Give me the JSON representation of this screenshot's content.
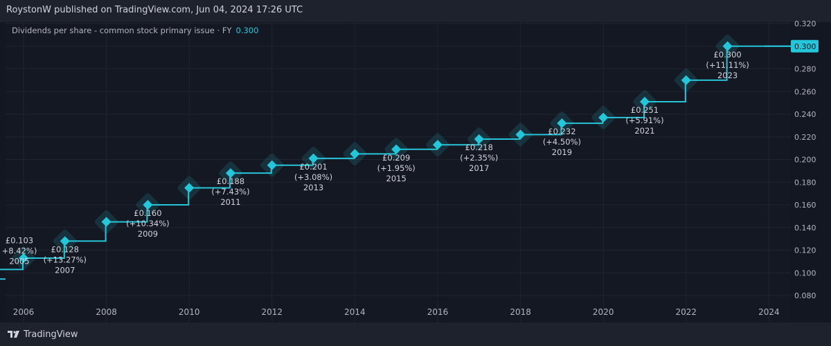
{
  "header": {
    "published_text": "RoystonW published on TradingView.com, Jun 04, 2024 17:26 UTC"
  },
  "legend": {
    "label": "Dividends per share - common stock primary issue · FY",
    "value": "0.300"
  },
  "brand": {
    "name": "TradingView",
    "logo_icon": "tradingview-logo-icon"
  },
  "colors": {
    "background": "#131722",
    "line": "#26c6da",
    "marker": "#26c6da",
    "grid": "#1f2430",
    "text": "#d1d4dc"
  },
  "chart_data": {
    "type": "line",
    "title": "",
    "line_shape": "step",
    "xlabel": "",
    "ylabel": "",
    "x_ticks": [
      2006,
      2008,
      2010,
      2012,
      2014,
      2016,
      2018,
      2020,
      2022,
      2024
    ],
    "y_ticks": [
      "0.080",
      "0.100",
      "0.120",
      "0.140",
      "0.160",
      "0.180",
      "0.200",
      "0.220",
      "0.240",
      "0.260",
      "0.280",
      "0.300",
      "0.320"
    ],
    "xlim": [
      2005.6,
      2025.0
    ],
    "ylim": [
      0.07,
      0.325
    ],
    "grid": true,
    "series": [
      {
        "values": [
          {
            "x": 2005,
            "y": 0.103
          },
          {
            "x": 2006,
            "y": 0.113
          },
          {
            "x": 2007,
            "y": 0.128
          },
          {
            "x": 2008,
            "y": 0.145
          },
          {
            "x": 2009,
            "y": 0.16
          },
          {
            "x": 2010,
            "y": 0.175
          },
          {
            "x": 2011,
            "y": 0.188
          },
          {
            "x": 2012,
            "y": 0.195
          },
          {
            "x": 2013,
            "y": 0.201
          },
          {
            "x": 2014,
            "y": 0.205
          },
          {
            "x": 2015,
            "y": 0.209
          },
          {
            "x": 2016,
            "y": 0.213
          },
          {
            "x": 2017,
            "y": 0.218
          },
          {
            "x": 2018,
            "y": 0.222
          },
          {
            "x": 2019,
            "y": 0.232
          },
          {
            "x": 2020,
            "y": 0.237
          },
          {
            "x": 2021,
            "y": 0.251
          },
          {
            "x": 2022,
            "y": 0.27
          },
          {
            "x": 2023,
            "y": 0.3
          }
        ]
      }
    ],
    "annotations": [
      {
        "x": 2005,
        "value": "£0.103",
        "change": "+8.42%)",
        "year": "2005"
      },
      {
        "x": 2007,
        "value": "£0.128",
        "change": "(+13.27%)",
        "year": "2007"
      },
      {
        "x": 2009,
        "value": "£0.160",
        "change": "(+10.34%)",
        "year": "2009"
      },
      {
        "x": 2011,
        "value": "£0.188",
        "change": "(+7.43%)",
        "year": "2011"
      },
      {
        "x": 2013,
        "value": "£0.201",
        "change": "(+3.08%)",
        "year": "2013"
      },
      {
        "x": 2015,
        "value": "£0.209",
        "change": "(+1.95%)",
        "year": "2015"
      },
      {
        "x": 2017,
        "value": "£0.218",
        "change": "(+2.35%)",
        "year": "2017"
      },
      {
        "x": 2019,
        "value": "£0.232",
        "change": "(+4.50%)",
        "year": "2019"
      },
      {
        "x": 2021,
        "value": "£0.251",
        "change": "(+5.91%)",
        "year": "2021"
      },
      {
        "x": 2023,
        "value": "£0.300",
        "change": "(+11.11%)",
        "year": "2023"
      }
    ],
    "last_value_label": "0.300"
  }
}
